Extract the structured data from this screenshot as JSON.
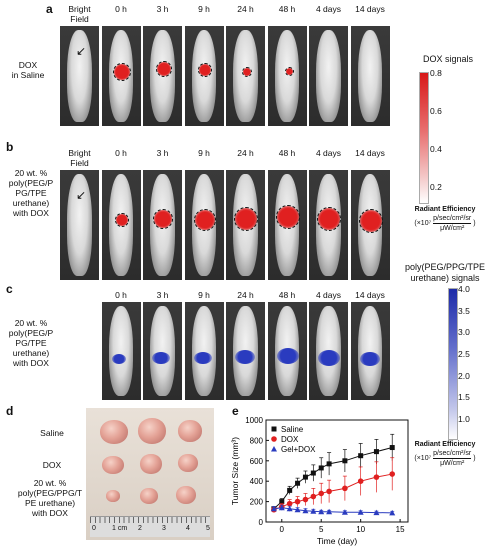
{
  "panels": {
    "a": {
      "letter": "a",
      "row_label": "DOX\nin Saline"
    },
    "b": {
      "letter": "b",
      "row_label": "20 wt. %\npoly(PEG/P\nPG/TPE\nurethane)\nwith DOX"
    },
    "c": {
      "letter": "c",
      "row_label": "20 wt. %\npoly(PEG/P\nPG/TPE\nurethane)\nwith DOX"
    },
    "d": {
      "letter": "d",
      "rows": [
        "Saline",
        "DOX",
        "20 wt. %\npoly(PEG/PPG/T\nPE urethane)\nwith DOX"
      ],
      "ruler_labels": [
        "0",
        "1 cm",
        "2",
        "3",
        "4",
        "5"
      ]
    },
    "e": {
      "letter": "e"
    }
  },
  "time_labels": [
    "Bright\nField",
    "0 h",
    "3 h",
    "9 h",
    "24 h",
    "48 h",
    "4 days",
    "14 days"
  ],
  "time_labels_c": [
    "0 h",
    "3 h",
    "9 h",
    "24 h",
    "48 h",
    "4 days",
    "14 days"
  ],
  "colorbar_red": {
    "title": "DOX signals",
    "ticks": [
      "0.8",
      "0.6",
      "0.4",
      "0.2"
    ],
    "color": "#e02020",
    "unit_title": "Radiant Efficiency",
    "unit_prefix": "(×10⁷",
    "unit_num": "p/sec/cm²/sr",
    "unit_den": "μW/cm²",
    "unit_suffix": ")"
  },
  "colorbar_blue": {
    "title": "poly(PEG/PPG/TPE\nurethane) signals",
    "ticks": [
      "4.0",
      "3.5",
      "3.0",
      "2.5",
      "2.0",
      "1.5",
      "1.0"
    ],
    "color": "#2a3bbf",
    "unit_title": "Radiant Efficiency",
    "unit_prefix": "(×10⁷",
    "unit_num": "p/sec/cm²/sr",
    "unit_den": "μW/cm²",
    "unit_suffix": ")"
  },
  "chart_data": {
    "type": "line",
    "xlabel": "Time (day)",
    "ylabel": "Tumor Size (mm³)",
    "xlim": [
      -2,
      16
    ],
    "ylim": [
      0,
      1000
    ],
    "xticks": [
      0,
      5,
      10,
      15
    ],
    "yticks": [
      0,
      200,
      400,
      600,
      800,
      1000
    ],
    "legend_position": "top-left",
    "series": [
      {
        "name": "Saline",
        "color": "#111111",
        "marker": "square",
        "x": [
          -1,
          0,
          1,
          2,
          3,
          4,
          5,
          6,
          8,
          10,
          12,
          14
        ],
        "y": [
          130,
          200,
          310,
          380,
          440,
          480,
          530,
          570,
          600,
          650,
          690,
          730
        ],
        "err": [
          20,
          30,
          40,
          50,
          60,
          80,
          100,
          110,
          110,
          120,
          120,
          130
        ]
      },
      {
        "name": "DOX",
        "color": "#e02020",
        "marker": "circle",
        "x": [
          -1,
          0,
          1,
          2,
          3,
          4,
          5,
          6,
          8,
          10,
          12,
          14
        ],
        "y": [
          120,
          150,
          180,
          200,
          220,
          250,
          280,
          300,
          330,
          400,
          440,
          470
        ],
        "err": [
          20,
          30,
          40,
          50,
          60,
          80,
          100,
          110,
          120,
          140,
          150,
          160
        ]
      },
      {
        "name": "Gel+DOX",
        "color": "#2a3bbf",
        "marker": "triangle",
        "x": [
          -1,
          0,
          1,
          2,
          3,
          4,
          5,
          6,
          8,
          10,
          12,
          14
        ],
        "y": [
          130,
          140,
          130,
          120,
          110,
          105,
          100,
          100,
          95,
          95,
          92,
          90
        ],
        "err": [
          20,
          25,
          25,
          20,
          20,
          20,
          15,
          15,
          15,
          15,
          15,
          15
        ]
      }
    ]
  }
}
